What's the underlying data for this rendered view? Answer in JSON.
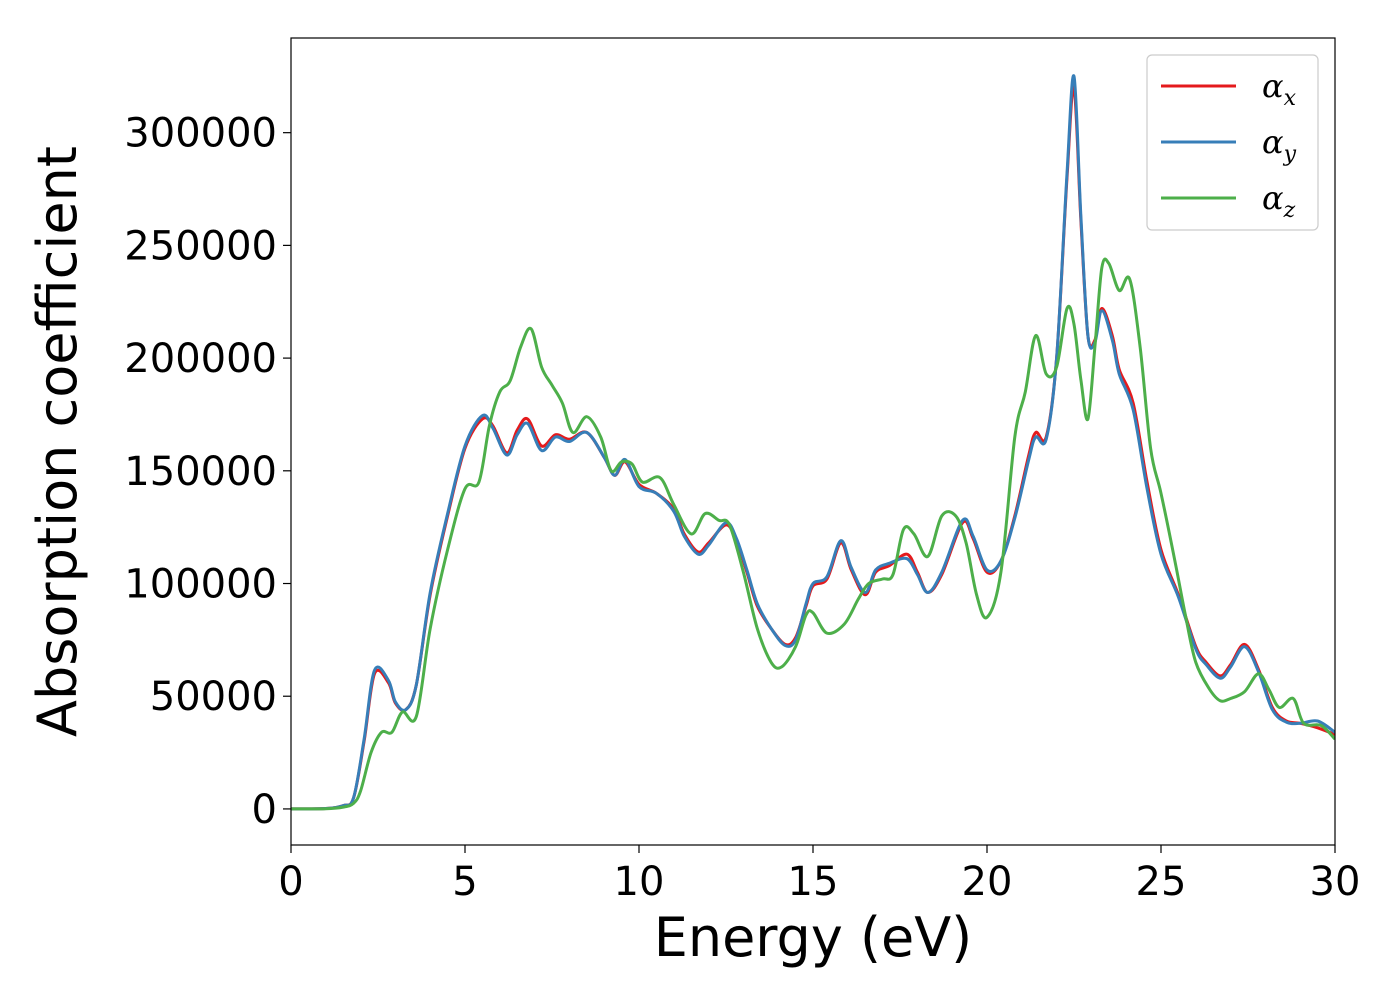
{
  "chart_data": {
    "type": "line",
    "xlabel": "Energy (eV)",
    "ylabel": "Absorption coefficient",
    "xlim": [
      0,
      30
    ],
    "ylim": [
      -16000,
      342000
    ],
    "x_ticks": [
      "0",
      "5",
      "10",
      "15",
      "20",
      "25",
      "30"
    ],
    "y_ticks": [
      "0",
      "50000",
      "100000",
      "150000",
      "200000",
      "250000",
      "300000"
    ],
    "grid": false,
    "legend_position": "top-right",
    "series": [
      {
        "name": "αx",
        "label_main": "α",
        "label_sub": "x",
        "color": "#e41a1c",
        "points": [
          [
            0,
            0
          ],
          [
            1,
            200
          ],
          [
            1.5,
            1500
          ],
          [
            1.8,
            5000
          ],
          [
            2.1,
            30000
          ],
          [
            2.4,
            60000
          ],
          [
            2.8,
            56000
          ],
          [
            3.0,
            47000
          ],
          [
            3.3,
            44000
          ],
          [
            3.6,
            55000
          ],
          [
            4.0,
            95000
          ],
          [
            4.5,
            130000
          ],
          [
            5.0,
            160000
          ],
          [
            5.5,
            173000
          ],
          [
            5.8,
            170000
          ],
          [
            6.2,
            158000
          ],
          [
            6.5,
            168000
          ],
          [
            6.8,
            173000
          ],
          [
            7.2,
            161000
          ],
          [
            7.6,
            166000
          ],
          [
            8.0,
            164000
          ],
          [
            8.5,
            167000
          ],
          [
            9.0,
            156000
          ],
          [
            9.3,
            148000
          ],
          [
            9.6,
            154000
          ],
          [
            10.0,
            144000
          ],
          [
            10.5,
            140000
          ],
          [
            11.0,
            133000
          ],
          [
            11.3,
            122000
          ],
          [
            11.7,
            114000
          ],
          [
            12.0,
            118000
          ],
          [
            12.5,
            126000
          ],
          [
            12.8,
            119000
          ],
          [
            13.1,
            105000
          ],
          [
            13.4,
            90000
          ],
          [
            13.8,
            80000
          ],
          [
            14.2,
            73000
          ],
          [
            14.5,
            76000
          ],
          [
            14.8,
            90000
          ],
          [
            15.0,
            99000
          ],
          [
            15.4,
            102000
          ],
          [
            15.8,
            118000
          ],
          [
            16.1,
            106000
          ],
          [
            16.5,
            95000
          ],
          [
            16.8,
            105000
          ],
          [
            17.2,
            108000
          ],
          [
            17.7,
            113000
          ],
          [
            18.0,
            105000
          ],
          [
            18.3,
            96000
          ],
          [
            18.7,
            104000
          ],
          [
            19.3,
            127000
          ],
          [
            19.6,
            120000
          ],
          [
            20.0,
            105000
          ],
          [
            20.4,
            110000
          ],
          [
            20.8,
            130000
          ],
          [
            21.2,
            157000
          ],
          [
            21.4,
            167000
          ],
          [
            21.7,
            165000
          ],
          [
            22.0,
            200000
          ],
          [
            22.3,
            280000
          ],
          [
            22.5,
            320000
          ],
          [
            22.7,
            260000
          ],
          [
            22.9,
            210000
          ],
          [
            23.1,
            208000
          ],
          [
            23.3,
            222000
          ],
          [
            23.6,
            210000
          ],
          [
            23.8,
            195000
          ],
          [
            24.2,
            180000
          ],
          [
            24.6,
            145000
          ],
          [
            25.0,
            115000
          ],
          [
            25.5,
            95000
          ],
          [
            26.0,
            72000
          ],
          [
            26.3,
            65000
          ],
          [
            26.7,
            59000
          ],
          [
            27.0,
            64000
          ],
          [
            27.4,
            73000
          ],
          [
            27.8,
            62000
          ],
          [
            28.2,
            45000
          ],
          [
            28.6,
            39000
          ],
          [
            29.0,
            38000
          ],
          [
            29.5,
            36000
          ],
          [
            30.0,
            33000
          ]
        ]
      },
      {
        "name": "αy",
        "label_main": "α",
        "label_sub": "y",
        "color": "#377eb8",
        "points": [
          [
            0,
            0
          ],
          [
            1,
            200
          ],
          [
            1.5,
            1500
          ],
          [
            1.8,
            5000
          ],
          [
            2.1,
            31000
          ],
          [
            2.4,
            61500
          ],
          [
            2.8,
            57000
          ],
          [
            3.0,
            47500
          ],
          [
            3.3,
            44000
          ],
          [
            3.6,
            55000
          ],
          [
            4.0,
            96000
          ],
          [
            4.5,
            131000
          ],
          [
            5.0,
            161000
          ],
          [
            5.5,
            174500
          ],
          [
            5.8,
            169000
          ],
          [
            6.2,
            157000
          ],
          [
            6.5,
            166000
          ],
          [
            6.8,
            171000
          ],
          [
            7.2,
            159000
          ],
          [
            7.6,
            165000
          ],
          [
            8.0,
            163000
          ],
          [
            8.5,
            167000
          ],
          [
            9.0,
            156000
          ],
          [
            9.3,
            148000
          ],
          [
            9.6,
            155000
          ],
          [
            10.0,
            143000
          ],
          [
            10.5,
            140000
          ],
          [
            11.0,
            132000
          ],
          [
            11.3,
            121000
          ],
          [
            11.7,
            113000
          ],
          [
            12.0,
            117000
          ],
          [
            12.5,
            127000
          ],
          [
            12.8,
            120000
          ],
          [
            13.1,
            106000
          ],
          [
            13.4,
            91000
          ],
          [
            13.8,
            80000
          ],
          [
            14.2,
            72500
          ],
          [
            14.5,
            75000
          ],
          [
            14.8,
            91000
          ],
          [
            15.0,
            100000
          ],
          [
            15.4,
            103000
          ],
          [
            15.8,
            119000
          ],
          [
            16.1,
            107000
          ],
          [
            16.5,
            96000
          ],
          [
            16.8,
            106000
          ],
          [
            17.2,
            109000
          ],
          [
            17.7,
            111000
          ],
          [
            18.0,
            104000
          ],
          [
            18.3,
            96000
          ],
          [
            18.7,
            105000
          ],
          [
            19.3,
            128000
          ],
          [
            19.6,
            121000
          ],
          [
            20.0,
            106000
          ],
          [
            20.4,
            110000
          ],
          [
            20.8,
            129000
          ],
          [
            21.2,
            155000
          ],
          [
            21.4,
            165000
          ],
          [
            21.7,
            164000
          ],
          [
            22.0,
            200000
          ],
          [
            22.3,
            282000
          ],
          [
            22.5,
            325000
          ],
          [
            22.7,
            262000
          ],
          [
            22.9,
            210000
          ],
          [
            23.1,
            207000
          ],
          [
            23.3,
            221000
          ],
          [
            23.6,
            208000
          ],
          [
            23.8,
            193000
          ],
          [
            24.2,
            177000
          ],
          [
            24.6,
            142000
          ],
          [
            25.0,
            113000
          ],
          [
            25.5,
            94000
          ],
          [
            26.0,
            71000
          ],
          [
            26.3,
            64000
          ],
          [
            26.7,
            58000
          ],
          [
            27.0,
            63000
          ],
          [
            27.4,
            72000
          ],
          [
            27.8,
            61000
          ],
          [
            28.2,
            44000
          ],
          [
            28.6,
            38500
          ],
          [
            29.0,
            38000
          ],
          [
            29.5,
            39000
          ],
          [
            30.0,
            34000
          ]
        ]
      },
      {
        "name": "αz",
        "label_main": "α",
        "label_sub": "z",
        "color": "#4daf4a",
        "points": [
          [
            0,
            0
          ],
          [
            1,
            100
          ],
          [
            1.5,
            800
          ],
          [
            1.8,
            2500
          ],
          [
            2.0,
            8000
          ],
          [
            2.3,
            25000
          ],
          [
            2.6,
            34000
          ],
          [
            2.9,
            34000
          ],
          [
            3.2,
            43000
          ],
          [
            3.6,
            41000
          ],
          [
            4.0,
            80000
          ],
          [
            4.5,
            115000
          ],
          [
            5.0,
            142000
          ],
          [
            5.4,
            145000
          ],
          [
            5.7,
            170000
          ],
          [
            6.0,
            185000
          ],
          [
            6.3,
            190000
          ],
          [
            6.6,
            205000
          ],
          [
            6.9,
            213000
          ],
          [
            7.2,
            196000
          ],
          [
            7.5,
            188000
          ],
          [
            7.8,
            180000
          ],
          [
            8.1,
            167000
          ],
          [
            8.5,
            174000
          ],
          [
            8.9,
            165000
          ],
          [
            9.2,
            150000
          ],
          [
            9.5,
            154000
          ],
          [
            9.8,
            153000
          ],
          [
            10.1,
            145000
          ],
          [
            10.6,
            147000
          ],
          [
            11.0,
            135000
          ],
          [
            11.5,
            122000
          ],
          [
            11.9,
            131000
          ],
          [
            12.3,
            128000
          ],
          [
            12.6,
            126000
          ],
          [
            13.0,
            105000
          ],
          [
            13.4,
            80000
          ],
          [
            13.8,
            65000
          ],
          [
            14.1,
            63000
          ],
          [
            14.5,
            72000
          ],
          [
            14.8,
            86000
          ],
          [
            15.0,
            87000
          ],
          [
            15.4,
            78000
          ],
          [
            15.9,
            82000
          ],
          [
            16.3,
            93000
          ],
          [
            16.6,
            100000
          ],
          [
            17.0,
            102000
          ],
          [
            17.3,
            104000
          ],
          [
            17.6,
            124000
          ],
          [
            17.9,
            122000
          ],
          [
            18.3,
            112000
          ],
          [
            18.7,
            130000
          ],
          [
            19.1,
            130000
          ],
          [
            19.4,
            118000
          ],
          [
            19.7,
            95000
          ],
          [
            20.0,
            85000
          ],
          [
            20.4,
            105000
          ],
          [
            20.8,
            165000
          ],
          [
            21.1,
            185000
          ],
          [
            21.4,
            210000
          ],
          [
            21.7,
            193000
          ],
          [
            22.0,
            196000
          ],
          [
            22.3,
            222000
          ],
          [
            22.5,
            215000
          ],
          [
            22.7,
            190000
          ],
          [
            22.9,
            173000
          ],
          [
            23.1,
            205000
          ],
          [
            23.3,
            240000
          ],
          [
            23.5,
            242000
          ],
          [
            23.8,
            230000
          ],
          [
            24.1,
            235000
          ],
          [
            24.4,
            205000
          ],
          [
            24.7,
            160000
          ],
          [
            25.0,
            140000
          ],
          [
            25.4,
            110000
          ],
          [
            25.7,
            86000
          ],
          [
            26.0,
            65000
          ],
          [
            26.4,
            53000
          ],
          [
            26.7,
            48000
          ],
          [
            27.0,
            49000
          ],
          [
            27.4,
            52000
          ],
          [
            27.8,
            60000
          ],
          [
            28.1,
            53000
          ],
          [
            28.4,
            45000
          ],
          [
            28.8,
            49000
          ],
          [
            29.1,
            38000
          ],
          [
            29.6,
            37000
          ],
          [
            30.0,
            31000
          ]
        ]
      }
    ]
  }
}
